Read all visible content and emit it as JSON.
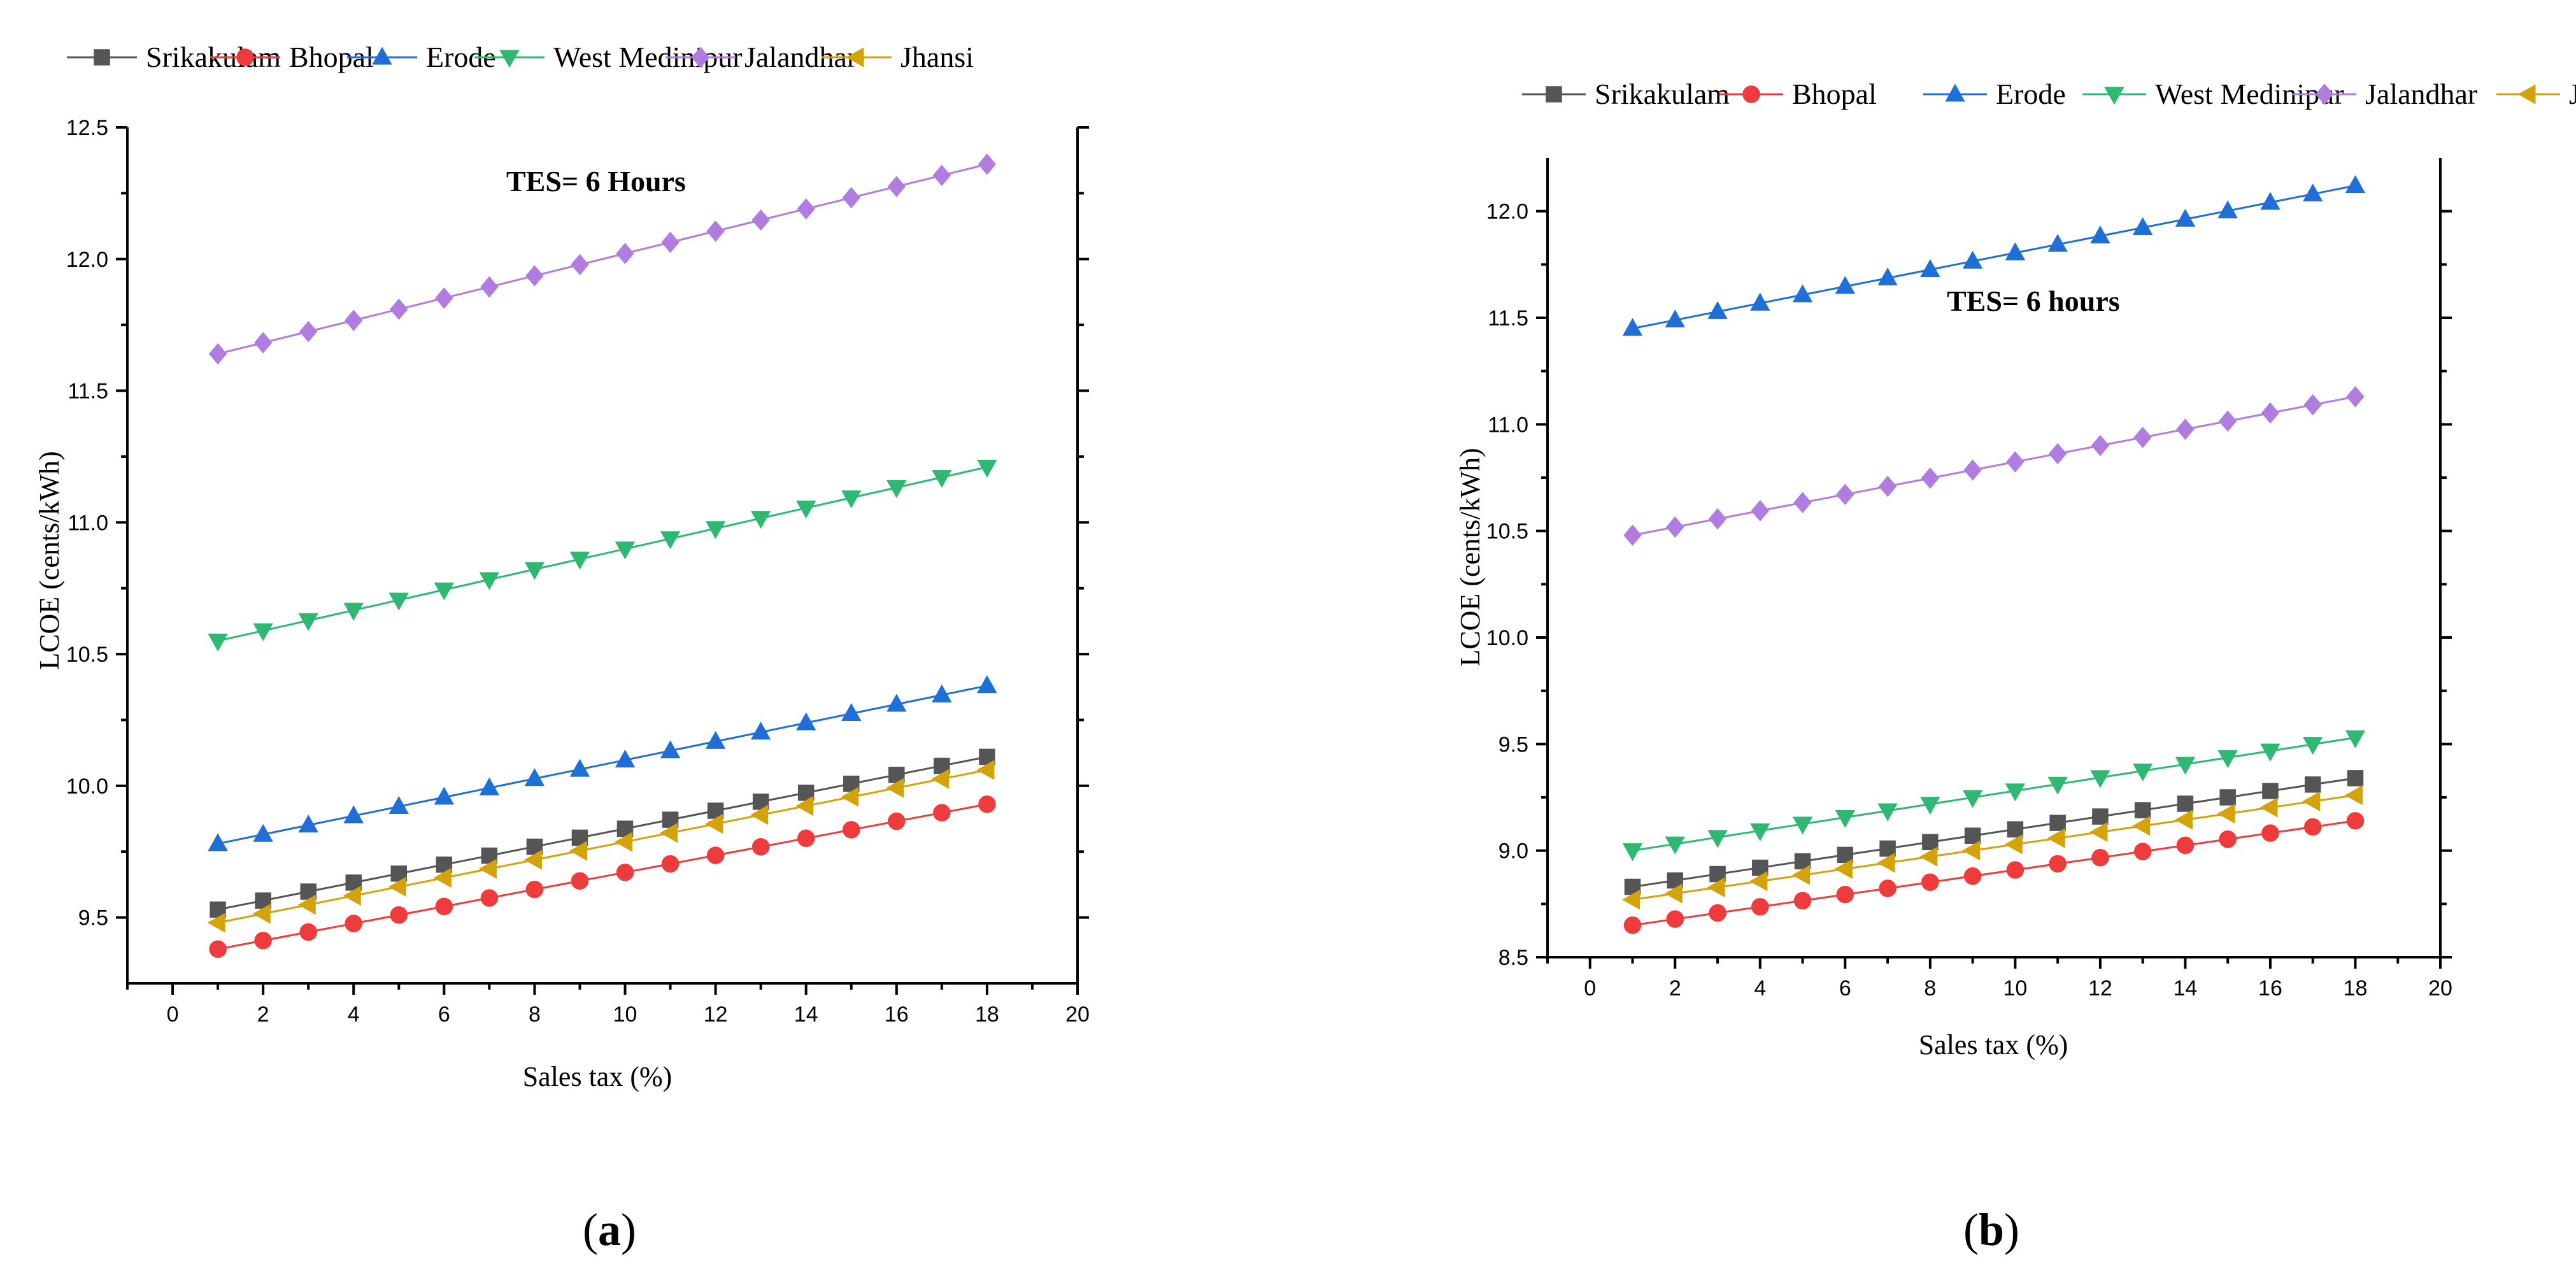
{
  "chart_data": [
    {
      "panel": "a",
      "type": "line",
      "title": "",
      "annotation": "TES= 6 Hours",
      "xlabel": "Sales tax (%)",
      "ylabel": "LCOE (cents/kWh)",
      "xlim": [
        -1,
        20
      ],
      "ylim": [
        9.25,
        12.5
      ],
      "xticks": [
        0,
        2,
        4,
        6,
        8,
        10,
        12,
        14,
        16,
        18,
        20
      ],
      "yticks": [
        9.5,
        10.0,
        10.5,
        11.0,
        11.5,
        12.0,
        12.5
      ],
      "ytick_labels": [
        "9.5",
        "10.0",
        "10.5",
        "11.0",
        "11.5",
        "12.0",
        "12.5"
      ],
      "x": [
        1,
        2,
        3,
        4,
        5,
        6,
        7,
        8,
        9,
        10,
        11,
        12,
        13,
        14,
        15,
        16,
        17,
        18
      ],
      "series": [
        {
          "name": "Srikakulam",
          "color": "#555555",
          "marker": "square",
          "start": 9.53,
          "end": 10.11
        },
        {
          "name": "Bhopal",
          "color": "#ee3b3b",
          "marker": "circle",
          "start": 9.38,
          "end": 9.93
        },
        {
          "name": "Erode",
          "color": "#1f6fd6",
          "marker": "triangle-up",
          "start": 9.78,
          "end": 10.38
        },
        {
          "name": "West Medinipur",
          "color": "#2eb872",
          "marker": "triangle-down",
          "start": 10.55,
          "end": 11.21
        },
        {
          "name": "Jalandhar",
          "color": "#b07ce0",
          "marker": "diamond",
          "start": 11.64,
          "end": 12.36
        },
        {
          "name": "Jhansi",
          "color": "#d4a20a",
          "marker": "triangle-left",
          "start": 9.48,
          "end": 10.06
        }
      ],
      "panel_label": {
        "open": "(",
        "letter": "a",
        "close": ")"
      }
    },
    {
      "panel": "b",
      "type": "line",
      "title": "",
      "annotation": "TES= 6 hours",
      "xlabel": "Sales tax (%)",
      "ylabel": "LCOE (cents/kWh)",
      "xlim": [
        -1,
        20
      ],
      "ylim": [
        8.5,
        12.25
      ],
      "xticks": [
        0,
        2,
        4,
        6,
        8,
        10,
        12,
        14,
        16,
        18,
        20
      ],
      "yticks": [
        8.5,
        9.0,
        9.5,
        10.0,
        10.5,
        11.0,
        11.5,
        12.0
      ],
      "ytick_labels": [
        "8.5",
        "9.0",
        "9.5",
        "10.0",
        "10.5",
        "11.0",
        "11.5",
        "12.0"
      ],
      "x": [
        1,
        2,
        3,
        4,
        5,
        6,
        7,
        8,
        9,
        10,
        11,
        12,
        13,
        14,
        15,
        16,
        17,
        18
      ],
      "series": [
        {
          "name": "Srikakulam",
          "color": "#555555",
          "marker": "square",
          "start": 8.83,
          "end": 9.34
        },
        {
          "name": "Bhopal",
          "color": "#ee3b3b",
          "marker": "circle",
          "start": 8.65,
          "end": 9.14
        },
        {
          "name": "Erode",
          "color": "#1f6fd6",
          "marker": "triangle-up",
          "start": 11.45,
          "end": 12.12
        },
        {
          "name": "West Medinipur",
          "color": "#2eb872",
          "marker": "triangle-down",
          "start": 9.0,
          "end": 9.53
        },
        {
          "name": "Jalandhar",
          "color": "#b07ce0",
          "marker": "diamond",
          "start": 10.48,
          "end": 11.13
        },
        {
          "name": "Jhansi",
          "color": "#d4a20a",
          "marker": "triangle-left",
          "start": 8.77,
          "end": 9.26
        }
      ],
      "panel_label": {
        "open": "(",
        "letter": "b",
        "close": ")"
      }
    }
  ]
}
